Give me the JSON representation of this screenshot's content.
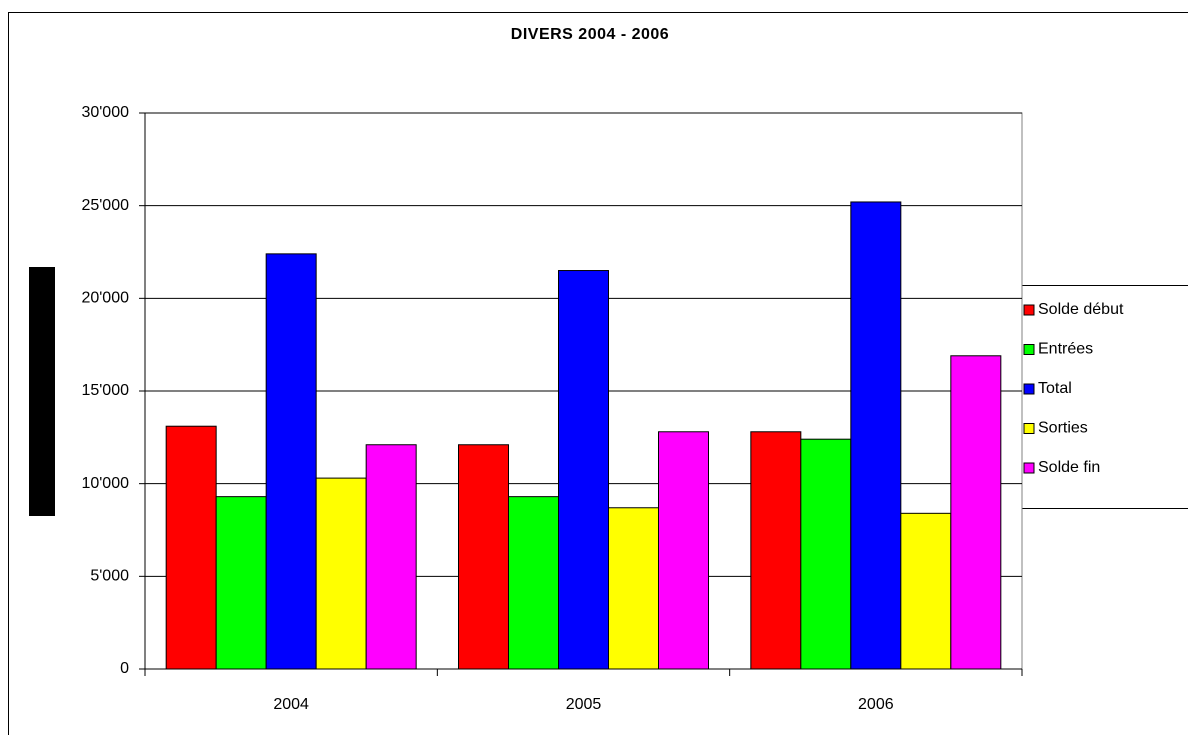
{
  "chart_data": {
    "type": "bar",
    "title": "DIVERS 2004 - 2006",
    "categories": [
      "2004",
      "2005",
      "2006"
    ],
    "series": [
      {
        "name": "Solde début",
        "color": "#ff0000",
        "values": [
          13100,
          12100,
          12800
        ]
      },
      {
        "name": "Entrées",
        "color": "#00ff00",
        "values": [
          9300,
          9300,
          12400
        ]
      },
      {
        "name": "Total",
        "color": "#0000ff",
        "values": [
          22400,
          21500,
          25200
        ]
      },
      {
        "name": "Sorties",
        "color": "#ffff00",
        "values": [
          10300,
          8700,
          8400
        ]
      },
      {
        "name": "Solde fin",
        "color": "#ff00ff",
        "values": [
          12100,
          12800,
          16900
        ]
      }
    ],
    "ylim": [
      0,
      30000
    ],
    "yticks": [
      0,
      {
        "value": 5000,
        "label": "5'000"
      },
      {
        "value": 10000,
        "label": "10'000"
      },
      {
        "value": 15000,
        "label": "15'000"
      },
      {
        "value": 20000,
        "label": "20'000"
      },
      {
        "value": 25000,
        "label": "25'000"
      },
      {
        "value": 30000,
        "label": "30'000"
      }
    ],
    "grid": true,
    "legend": "right"
  }
}
